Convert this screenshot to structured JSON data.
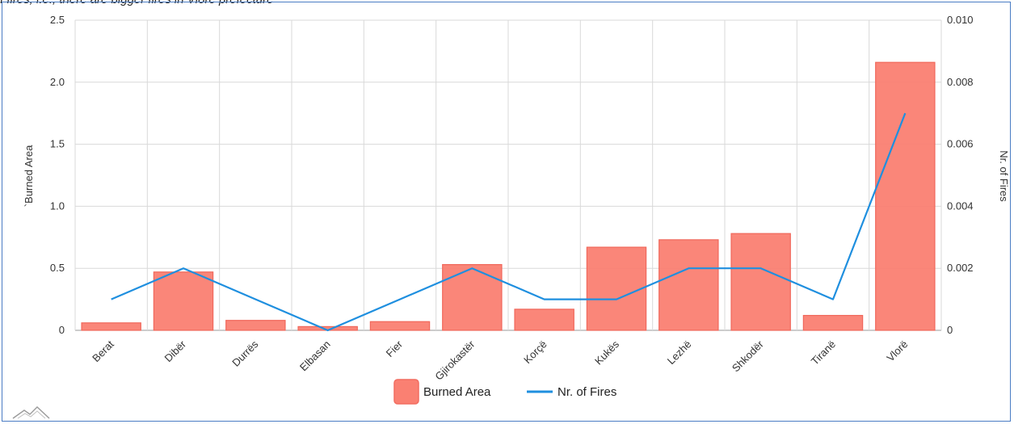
{
  "caption_fragment": "f fires, i.e., there are bigger fires in Vlorë prefecture",
  "chart_data": {
    "type": "bar",
    "categories": [
      "Berat",
      "Dibër",
      "Durrës",
      "Elbasan",
      "Fier",
      "Gjirokastër",
      "Korçë",
      "Kukës",
      "Lezhë",
      "Shkodër",
      "Tiranë",
      "Vlorë"
    ],
    "series": [
      {
        "name": "Burned Area",
        "type": "bar",
        "axis": "left",
        "color": "#fa8072",
        "values": [
          0.06,
          0.47,
          0.08,
          0.03,
          0.07,
          0.53,
          0.17,
          0.67,
          0.73,
          0.78,
          0.12,
          2.16
        ]
      },
      {
        "name": "Nr. of Fires",
        "type": "line",
        "axis": "right",
        "color": "#1f8fdf",
        "values": [
          0.001,
          0.002,
          0.001,
          0.0,
          0.001,
          0.002,
          0.001,
          0.001,
          0.002,
          0.002,
          0.001,
          0.007
        ]
      }
    ],
    "ylabel": "`Burned Area",
    "y2label": "Nr. of Fires",
    "ylim": [
      0,
      2.5
    ],
    "y2lim": [
      0,
      0.01
    ],
    "yticks": [
      "0",
      "0.5",
      "1.0",
      "1.5",
      "2.0",
      "2.5"
    ],
    "y2ticks": [
      "0",
      "0.002",
      "0.004",
      "0.006",
      "0.008",
      "0.010"
    ],
    "grid": true,
    "legend_position": "bottom-center"
  },
  "icons": {
    "logo": "mountain-logo-icon"
  }
}
